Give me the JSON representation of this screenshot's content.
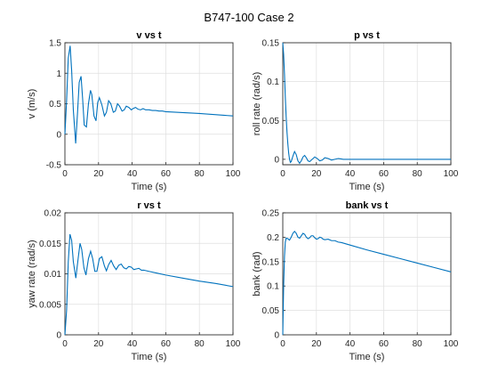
{
  "figure": {
    "title": "B747-100 Case 2"
  },
  "chart_data": [
    {
      "type": "line",
      "title": "v vs t",
      "xlabel": "Time (s)",
      "ylabel": "v (m/s)",
      "xlim": [
        0,
        100
      ],
      "ylim": [
        -0.5,
        1.5
      ],
      "xticks": [
        0,
        20,
        40,
        60,
        80,
        100
      ],
      "yticks": [
        -0.5,
        0,
        0.5,
        1,
        1.5
      ],
      "ytick_labels": [
        "-0.5",
        "0",
        "0.5",
        "1",
        "1.5"
      ],
      "grid": true,
      "color": "#0072BD",
      "series": [
        {
          "name": "",
          "x": [
            0,
            1,
            2,
            3.1,
            4,
            5,
            6.4,
            7.5,
            8.5,
            9.6,
            10.5,
            11.5,
            12.8,
            14,
            15.2,
            16,
            17.3,
            18.5,
            19.5,
            20.5,
            22,
            23.5,
            24.7,
            26,
            27.3,
            28.8,
            30,
            31.3,
            32.5,
            34,
            35.3,
            36.5,
            38,
            39.5,
            40.5,
            42,
            43.5,
            45,
            46.5,
            48,
            50,
            52,
            54,
            56,
            58,
            60,
            70,
            80,
            90,
            100
          ],
          "y": [
            0,
            0.55,
            1.25,
            1.45,
            1.05,
            0.4,
            -0.15,
            0.35,
            0.85,
            0.95,
            0.6,
            0.15,
            0.12,
            0.5,
            0.72,
            0.65,
            0.3,
            0.22,
            0.52,
            0.6,
            0.48,
            0.3,
            0.36,
            0.55,
            0.5,
            0.36,
            0.38,
            0.5,
            0.46,
            0.38,
            0.4,
            0.46,
            0.44,
            0.4,
            0.42,
            0.44,
            0.41,
            0.4,
            0.42,
            0.4,
            0.4,
            0.39,
            0.39,
            0.38,
            0.38,
            0.37,
            0.355,
            0.34,
            0.32,
            0.3
          ]
        }
      ]
    },
    {
      "type": "line",
      "title": "p vs t",
      "xlabel": "Time (s)",
      "ylabel": "roll rate (rad/s)",
      "xlim": [
        0,
        100
      ],
      "ylim": [
        -0.007,
        0.15
      ],
      "xticks": [
        0,
        20,
        40,
        60,
        80,
        100
      ],
      "yticks": [
        0,
        0.05,
        0.1,
        0.15
      ],
      "ytick_labels": [
        "0",
        "0.05",
        "0.1",
        "0.15"
      ],
      "grid": true,
      "color": "#0072BD",
      "series": [
        {
          "name": "",
          "x": [
            0,
            0.5,
            1,
            1.5,
            2,
            2.5,
            3,
            3.5,
            4,
            4.5,
            5,
            6,
            7,
            8,
            9,
            10,
            11,
            12,
            13,
            14,
            15,
            16,
            17.5,
            19,
            20.5,
            22,
            23.5,
            25,
            27,
            29,
            31,
            33,
            36,
            40,
            50,
            60,
            80,
            100
          ],
          "y": [
            0.15,
            0.135,
            0.11,
            0.08,
            0.055,
            0.035,
            0.02,
            0.008,
            0.0,
            -0.004,
            -0.003,
            0.004,
            0.01,
            0.006,
            -0.002,
            -0.005,
            -0.002,
            0.003,
            0.005,
            0.002,
            -0.002,
            -0.003,
            0.0,
            0.003,
            0.001,
            -0.002,
            -0.001,
            0.002,
            0.001,
            -0.001,
            0.0,
            0.001,
            0.0,
            0.0,
            0.0,
            0.0,
            0.0,
            0.0
          ]
        }
      ]
    },
    {
      "type": "line",
      "title": "r vs t",
      "xlabel": "Time (s)",
      "ylabel": "yaw rate (rad/s)",
      "xlim": [
        0,
        100
      ],
      "ylim": [
        0,
        0.02
      ],
      "xticks": [
        0,
        20,
        40,
        60,
        80,
        100
      ],
      "yticks": [
        0,
        0.005,
        0.01,
        0.015,
        0.02
      ],
      "ytick_labels": [
        "0",
        "0.005",
        "0.01",
        "0.015",
        "0.02"
      ],
      "grid": true,
      "color": "#0072BD",
      "series": [
        {
          "name": "",
          "x": [
            0,
            1,
            2,
            3,
            4,
            5,
            6.5,
            8,
            9,
            10,
            11.3,
            12.5,
            14,
            15.3,
            16.5,
            17.8,
            19,
            20.5,
            22,
            23.5,
            24.7,
            26,
            27.5,
            29,
            30.5,
            32,
            33.5,
            35,
            36.5,
            38,
            39.5,
            41,
            42.5,
            44,
            45.5,
            47,
            50,
            55,
            60,
            70,
            80,
            90,
            100
          ],
          "y": [
            0,
            0.004,
            0.012,
            0.0165,
            0.0155,
            0.012,
            0.0093,
            0.0128,
            0.015,
            0.014,
            0.011,
            0.0098,
            0.0125,
            0.0137,
            0.0125,
            0.0104,
            0.0104,
            0.0125,
            0.0128,
            0.0113,
            0.0105,
            0.0115,
            0.0122,
            0.0113,
            0.0107,
            0.0114,
            0.0116,
            0.011,
            0.0108,
            0.0112,
            0.0111,
            0.0107,
            0.0108,
            0.0109,
            0.0106,
            0.0106,
            0.0104,
            0.0101,
            0.0098,
            0.0093,
            0.0088,
            0.0084,
            0.0079
          ]
        }
      ]
    },
    {
      "type": "line",
      "title": "bank vs t",
      "xlabel": "Time (s)",
      "ylabel": "bank (rad)",
      "xlim": [
        0,
        100
      ],
      "ylim": [
        0,
        0.25
      ],
      "xticks": [
        0,
        20,
        40,
        60,
        80,
        100
      ],
      "yticks": [
        0,
        0.05,
        0.1,
        0.15,
        0.2,
        0.25
      ],
      "ytick_labels": [
        "0",
        "0.05",
        "0.1",
        "0.15",
        "0.2",
        "0.25"
      ],
      "grid": true,
      "color": "#0072BD",
      "series": [
        {
          "name": "",
          "x": [
            0,
            0.5,
            1,
            1.5,
            2,
            3,
            4,
            5,
            6,
            7,
            8,
            9,
            10,
            11,
            12,
            13,
            14,
            15,
            16,
            17,
            18,
            19,
            20,
            21,
            22,
            23,
            24,
            25,
            27,
            29,
            31,
            33,
            35,
            40,
            50,
            60,
            70,
            80,
            90,
            100
          ],
          "y": [
            0,
            0.1,
            0.16,
            0.19,
            0.198,
            0.197,
            0.194,
            0.2,
            0.208,
            0.212,
            0.208,
            0.2,
            0.198,
            0.203,
            0.208,
            0.206,
            0.2,
            0.197,
            0.199,
            0.203,
            0.203,
            0.199,
            0.196,
            0.197,
            0.2,
            0.199,
            0.196,
            0.195,
            0.196,
            0.193,
            0.193,
            0.19,
            0.189,
            0.184,
            0.174,
            0.165,
            0.156,
            0.147,
            0.138,
            0.129
          ]
        }
      ]
    }
  ]
}
